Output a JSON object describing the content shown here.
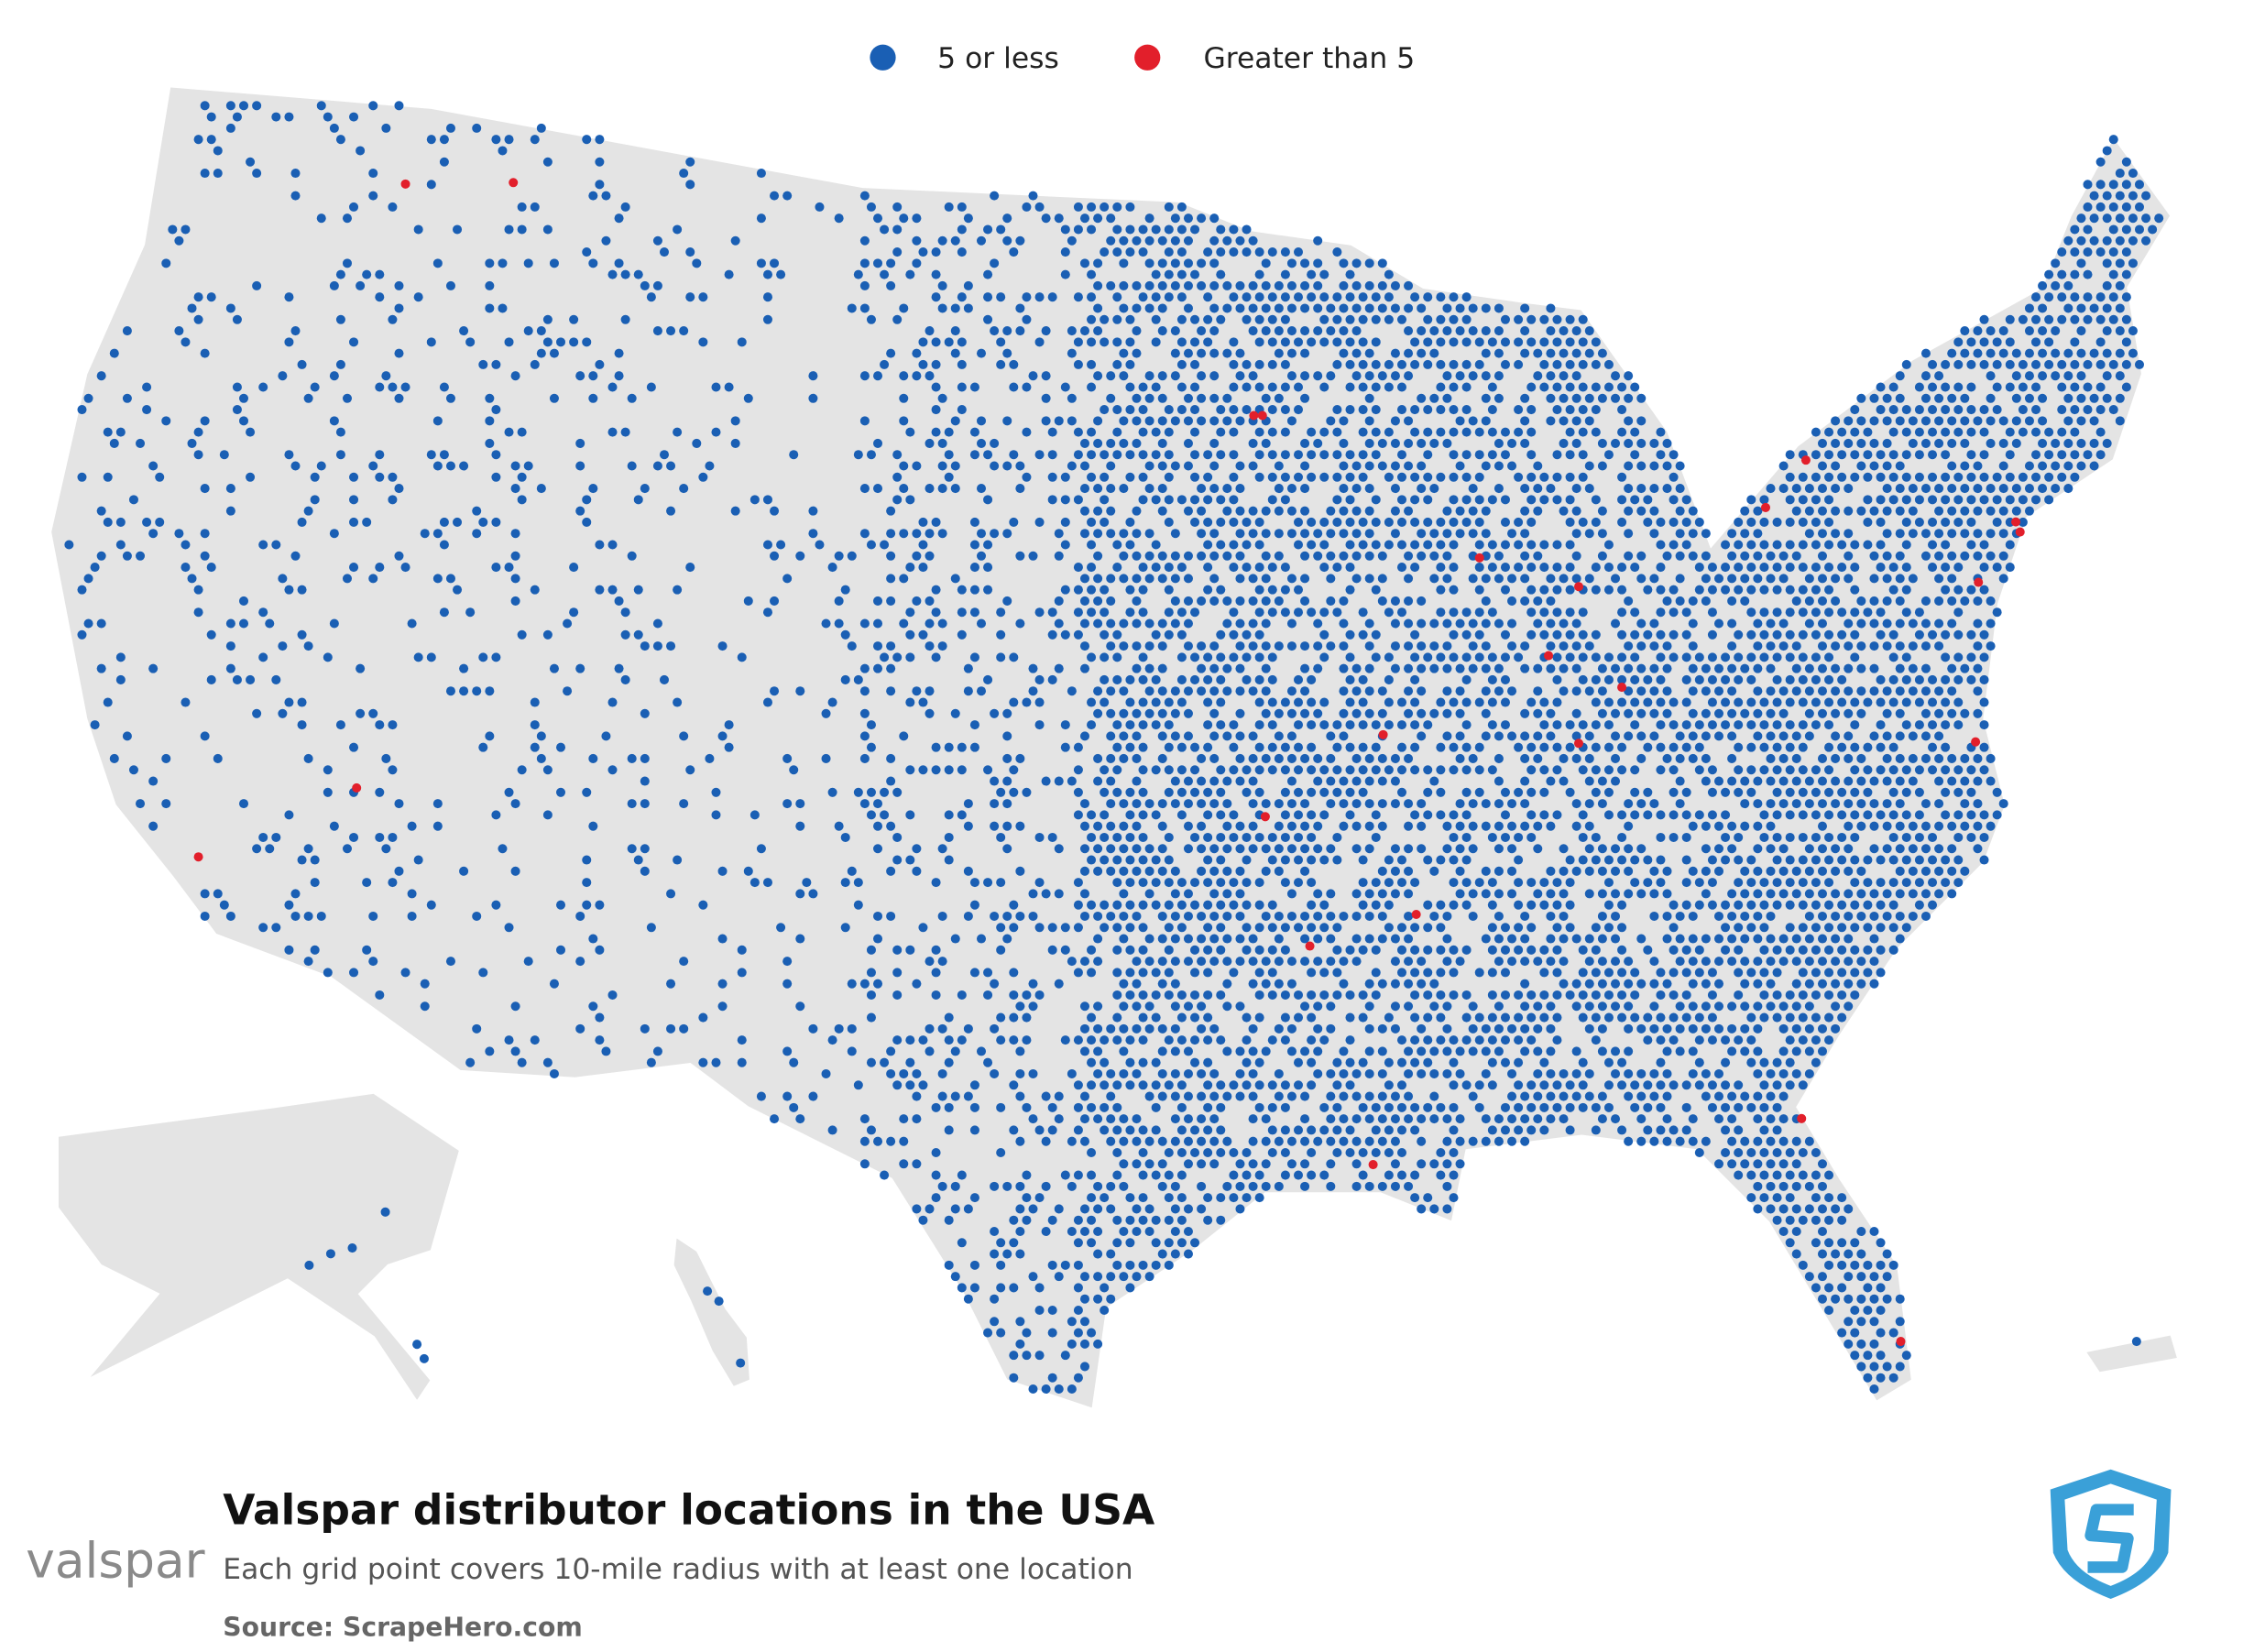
{
  "legend": {
    "items": [
      {
        "label": "5 or less",
        "color": "#1a5fb4"
      },
      {
        "label": "Greater than 5",
        "color": "#e21f2b"
      }
    ]
  },
  "title": "Valspar distributor locations in the USA",
  "subtitle": "Each grid point covers 10-mile radius with at least one location",
  "source": "Source: ScrapeHero.com",
  "brand": "valspar"
}
